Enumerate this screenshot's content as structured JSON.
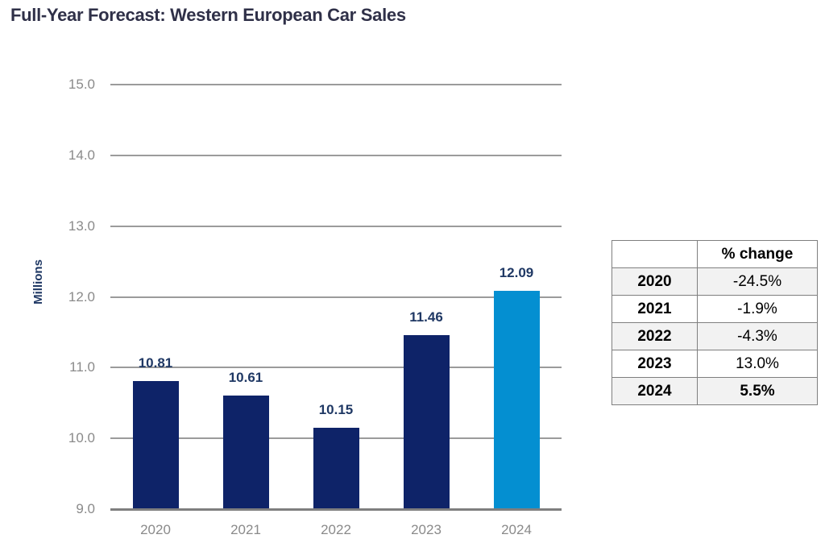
{
  "title": "Full-Year Forecast: Western European Car Sales",
  "colors": {
    "title_text": "#2F3048",
    "bar_actual": "#0E2368",
    "bar_forecast": "#048FD1",
    "data_label": "#1F3864",
    "axis_tick": "#8A8A8A",
    "gridline": "#9B9B9B",
    "baseline": "#7F7F7F",
    "ylabel_text": "#1F3864",
    "table_border": "#7F7F7F",
    "table_shade": "#F2F2F2"
  },
  "chart_data": {
    "type": "bar",
    "title": "Full-Year Forecast: Western European Car Sales",
    "categories": [
      "2020",
      "2021",
      "2022",
      "2023",
      "2024"
    ],
    "values": [
      10.81,
      10.61,
      10.15,
      11.46,
      12.09
    ],
    "value_labels": [
      "10.81",
      "10.61",
      "10.15",
      "11.46",
      "12.09"
    ],
    "highlight_index": 4,
    "xlabel": "",
    "ylabel": "Millions",
    "ylim": [
      9.0,
      15.0
    ],
    "yticks": [
      "15.0",
      "14.0",
      "13.0",
      "12.0",
      "11.0",
      "10.0",
      "9.0"
    ],
    "grid": true,
    "legend": "none",
    "table": {
      "headers": [
        "",
        "% change"
      ],
      "rows": [
        [
          "2020",
          "-24.5%"
        ],
        [
          "2021",
          "-1.9%"
        ],
        [
          "2022",
          "-4.3%"
        ],
        [
          "2023",
          "13.0%"
        ],
        [
          "2024",
          "5.5%"
        ]
      ],
      "bold_value_rows": [
        4
      ],
      "shaded_rows": [
        0,
        2,
        4
      ]
    }
  }
}
